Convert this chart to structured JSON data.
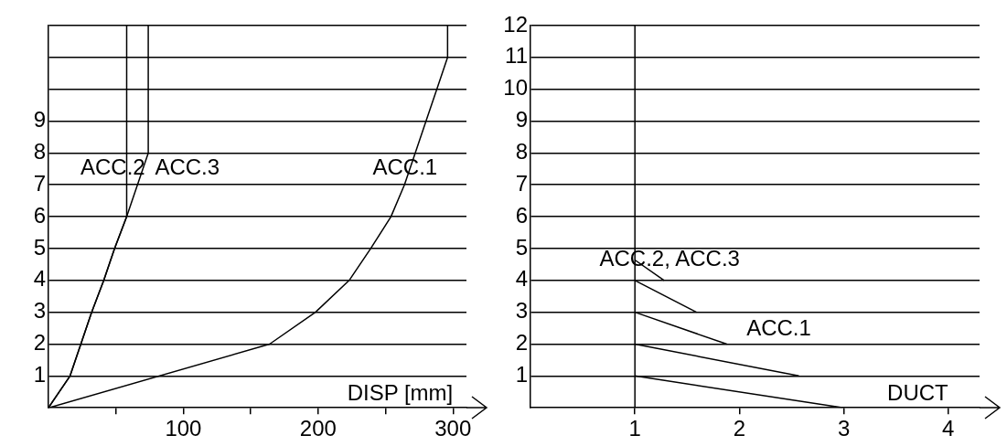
{
  "chart_data": [
    {
      "type": "line",
      "xlabel": "DISP [mm]",
      "xlim": [
        0,
        310
      ],
      "xticks": [
        {
          "value": 50,
          "label": null
        },
        100,
        {
          "value": 150,
          "label": null
        },
        200,
        {
          "value": 250,
          "label": null
        },
        300
      ],
      "ylim": [
        0,
        12
      ],
      "yticks": [
        1,
        2,
        3,
        4,
        5,
        6,
        7,
        8,
        9,
        {
          "value": 10,
          "label": null
        },
        {
          "value": 11,
          "label": null
        },
        {
          "value": 12,
          "label": null
        }
      ],
      "grid": "y",
      "marker": "none",
      "line_style": "solid",
      "series": [
        {
          "color": "#000000",
          "x": [
            0,
            164,
            198,
            223,
            239,
            254,
            264,
            272,
            280,
            288,
            296,
            296
          ],
          "values": [
            0,
            2,
            3,
            4,
            5,
            6,
            7,
            8,
            9,
            10,
            11,
            12
          ]
        },
        {
          "color": "#000000",
          "x": [
            0,
            16,
            24,
            32,
            41,
            49,
            58,
            58
          ],
          "values": [
            0,
            1,
            2,
            3,
            4,
            5,
            6,
            12
          ]
        },
        {
          "color": "#000000",
          "x": [
            0,
            16,
            24,
            32,
            41,
            49,
            58,
            74,
            74
          ],
          "values": [
            0,
            1,
            2,
            3,
            4,
            5,
            6,
            8,
            12
          ]
        }
      ],
      "annotations": [
        "ACC.2",
        "ACC.3",
        "ACC.1"
      ]
    },
    {
      "type": "line",
      "xlabel": "DUCT",
      "xlim": [
        0,
        4.3
      ],
      "xticks": [
        1,
        2,
        3,
        4
      ],
      "ylim": [
        0,
        12
      ],
      "yticks": [
        1,
        2,
        3,
        4,
        5,
        6,
        7,
        8,
        9,
        10,
        11,
        12
      ],
      "grid": "y",
      "marker": "none",
      "line_style": "solid",
      "series": [
        {
          "color": "#000000",
          "x": [
            3,
            1
          ],
          "values": [
            0,
            1
          ]
        },
        {
          "color": "#000000",
          "x": [
            2.57,
            1
          ],
          "values": [
            1,
            2
          ]
        },
        {
          "color": "#000000",
          "x": [
            1.88,
            1
          ],
          "values": [
            2,
            3
          ]
        },
        {
          "color": "#000000",
          "x": [
            1.59,
            1
          ],
          "values": [
            3,
            4
          ]
        },
        {
          "color": "#000000",
          "x": [
            1.28,
            1
          ],
          "values": [
            4,
            4.64
          ]
        }
      ],
      "annotations": [
        "ACC.2, ACC.3",
        "ACC.1"
      ],
      "ref_lines": [
        {
          "axis": "x",
          "value": 1
        }
      ]
    }
  ]
}
